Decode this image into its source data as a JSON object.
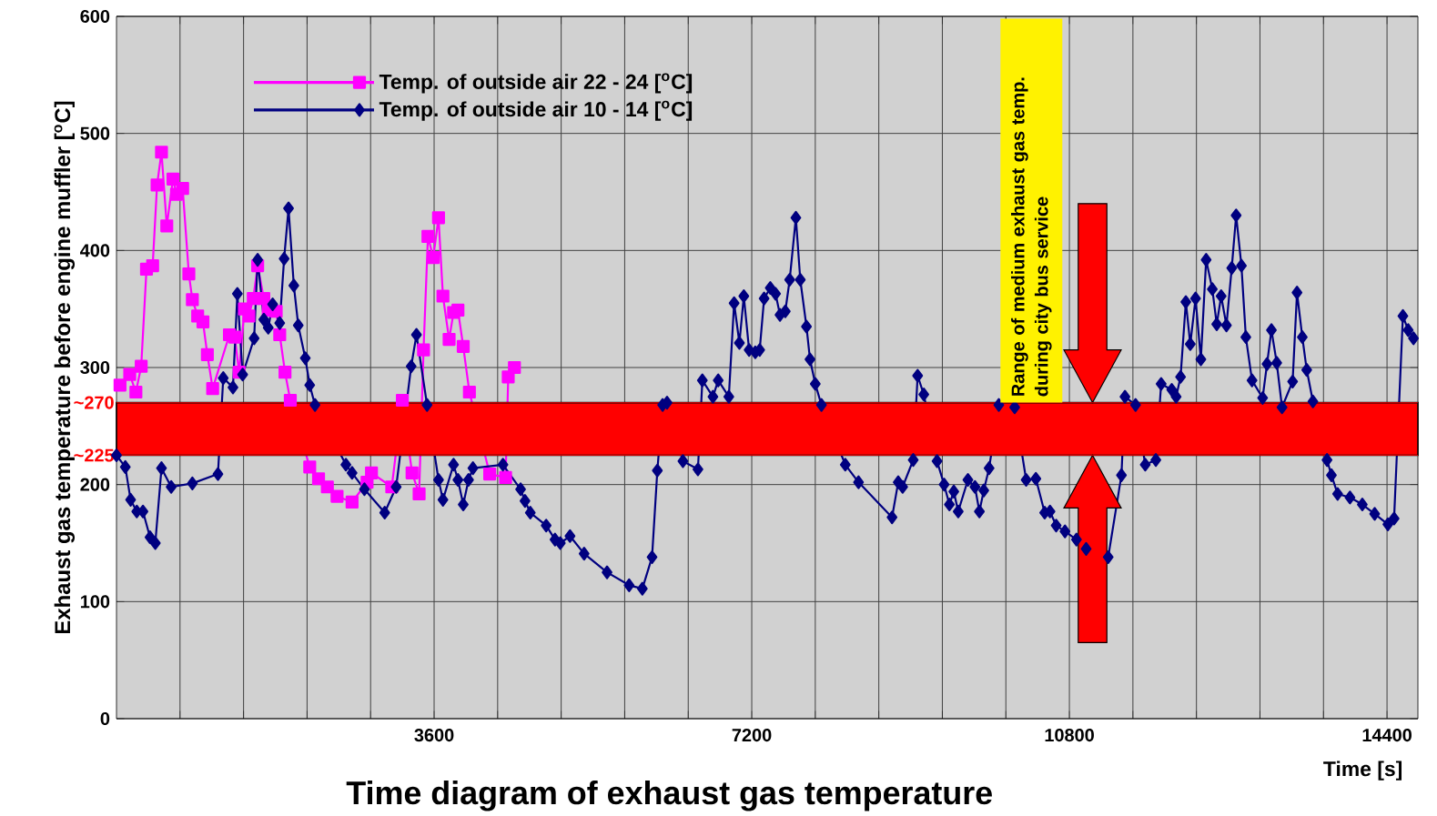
{
  "chart_data": {
    "type": "line",
    "title": "Time diagram of exhaust gas temperature",
    "xlabel": "Time [s]",
    "ylabel": "Exhaust gas temperature before engine muffler [$^{o}$C]",
    "xlim": [
      0,
      14750
    ],
    "ylim": [
      0,
      600
    ],
    "xticks": [
      {
        "value": 720,
        "label": null
      },
      {
        "value": 1440,
        "label": null
      },
      {
        "value": 2160,
        "label": null
      },
      {
        "value": 2880,
        "label": null
      },
      3600,
      {
        "value": 4320,
        "label": null
      },
      {
        "value": 5040,
        "label": null
      },
      {
        "value": 5760,
        "label": null
      },
      {
        "value": 6480,
        "label": null
      },
      7200,
      {
        "value": 7920,
        "label": null
      },
      {
        "value": 8640,
        "label": null
      },
      {
        "value": 9360,
        "label": null
      },
      {
        "value": 10080,
        "label": null
      },
      10800,
      {
        "value": 11520,
        "label": null
      },
      {
        "value": 12240,
        "label": null
      },
      {
        "value": 12960,
        "label": null
      },
      {
        "value": 13680,
        "label": null
      },
      14400
    ],
    "yticks": [
      0,
      100,
      200,
      300,
      400,
      500,
      600
    ],
    "grid": true,
    "legend": "top left",
    "series": [
      {
        "name": "Temp. of outside air 22 - 24 [$^{o}$C]",
        "color": "#ff00ff",
        "marker": "square",
        "x": [
          40,
          150,
          220,
          280,
          340,
          410,
          460,
          510,
          570,
          640,
          680,
          750,
          820,
          860,
          920,
          980,
          1030,
          1090,
          1280,
          1340,
          1390,
          1450,
          1500,
          1550,
          1600,
          1670,
          1720,
          1810,
          1850,
          1910,
          1970,
          2190,
          2290,
          2390,
          2500,
          2670,
          2840,
          2890,
          3120,
          3240,
          3350,
          3430,
          3480,
          3530,
          3590,
          3650,
          3700,
          3770,
          3820,
          3870,
          3930,
          4000,
          4230,
          4410,
          4440,
          4510
        ],
        "values": [
          285,
          294,
          279,
          301,
          384,
          387,
          456,
          484,
          421,
          461,
          448,
          453,
          380,
          358,
          344,
          339,
          311,
          282,
          328,
          326,
          296,
          350,
          344,
          359,
          387,
          359,
          349,
          348,
          328,
          296,
          272,
          215,
          205,
          198,
          190,
          185,
          202,
          210,
          198,
          272,
          210,
          192,
          315,
          412,
          394,
          428,
          361,
          324,
          347,
          349,
          318,
          279,
          209,
          206,
          292,
          300
        ]
      },
      {
        "name": "Temp. of outside air 10 - 14 [$^{o}$C]",
        "color": "#000080",
        "marker": "diamond",
        "x": [
          0,
          100,
          160,
          230,
          300,
          380,
          440,
          510,
          620,
          860,
          1150,
          1210,
          1320,
          1370,
          1430,
          1560,
          1600,
          1670,
          1720,
          1770,
          1850,
          1900,
          1950,
          2010,
          2060,
          2140,
          2190,
          2250,
          2600,
          2670,
          2810,
          3040,
          3170,
          3340,
          3400,
          3520,
          3650,
          3700,
          3820,
          3870,
          3930,
          3990,
          4040,
          4380,
          4580,
          4630,
          4690,
          4870,
          4970,
          5030,
          5140,
          5300,
          5560,
          5810,
          5960,
          6070,
          6130,
          6190,
          6240,
          6420,
          6590,
          6640,
          6760,
          6820,
          6940,
          7000,
          7060,
          7110,
          7170,
          7240,
          7290,
          7340,
          7410,
          7470,
          7520,
          7580,
          7630,
          7700,
          7750,
          7820,
          7860,
          7920,
          7990,
          8260,
          8410,
          8790,
          8860,
          8910,
          9030,
          9080,
          9150,
          9300,
          9380,
          9440,
          9490,
          9540,
          9650,
          9730,
          9780,
          9830,
          9890,
          10000,
          10180,
          10310,
          10420,
          10520,
          10580,
          10650,
          10750,
          10880,
          10990,
          11240,
          11390,
          11430,
          11550,
          11660,
          11780,
          11840,
          11960,
          12010,
          12060,
          12120,
          12170,
          12230,
          12290,
          12350,
          12420,
          12470,
          12520,
          12580,
          12640,
          12690,
          12750,
          12800,
          12870,
          12990,
          13040,
          13090,
          13150,
          13210,
          13330,
          13380,
          13440,
          13490,
          13560,
          13720,
          13770,
          13840,
          13980,
          14120,
          14260,
          14410,
          14480,
          14580,
          14640,
          14700
        ],
        "values": [
          225,
          215,
          187,
          177,
          177,
          155,
          150,
          214,
          198,
          201,
          209,
          291,
          283,
          363,
          294,
          325,
          392,
          341,
          334,
          354,
          338,
          393,
          436,
          370,
          336,
          308,
          285,
          268,
          217,
          210,
          196,
          176,
          198,
          301,
          328,
          268,
          204,
          187,
          217,
          204,
          183,
          204,
          214,
          217,
          196,
          186,
          176,
          165,
          153,
          150,
          156,
          141,
          125,
          114,
          111,
          138,
          212,
          268,
          270,
          220,
          213,
          289,
          275,
          289,
          275,
          355,
          321,
          361,
          315,
          313,
          315,
          359,
          368,
          363,
          345,
          348,
          375,
          428,
          375,
          335,
          307,
          286,
          268,
          217,
          202,
          172,
          202,
          198,
          221,
          293,
          277,
          220,
          200,
          183,
          194,
          177,
          204,
          198,
          177,
          195,
          214,
          268,
          266,
          204,
          205,
          176,
          177,
          165,
          160,
          153,
          145,
          138,
          208,
          275,
          268,
          217,
          221,
          286,
          281,
          275,
          292,
          356,
          320,
          359,
          307,
          392,
          367,
          337,
          361,
          336,
          385,
          430,
          387,
          326,
          289,
          274,
          303,
          332,
          304,
          266,
          288,
          364,
          326,
          298,
          271,
          221,
          208,
          192,
          189,
          183,
          175,
          166,
          171,
          344,
          332,
          325
        ]
      }
    ],
    "bands": [
      {
        "axis": "y",
        "from": 225,
        "to": 270,
        "color": "#ff0000",
        "label": "Range of  medium exhaust gas temp. during city bus service"
      }
    ],
    "ref_lines": [
      {
        "axis": "y",
        "value": 270,
        "label": "~270",
        "color": "#ff0000"
      },
      {
        "axis": "y",
        "value": 225,
        "label": "~225",
        "color": "#ff0000"
      }
    ]
  }
}
